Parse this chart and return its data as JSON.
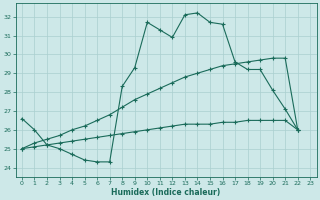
{
  "xlabel": "Humidex (Indice chaleur)",
  "bg_color": "#cde8e8",
  "grid_color": "#aacfcf",
  "line_color": "#1a6b5a",
  "xlim": [
    -0.5,
    23.5
  ],
  "ylim": [
    23.5,
    32.7
  ],
  "xticks": [
    0,
    1,
    2,
    3,
    4,
    5,
    6,
    7,
    8,
    9,
    10,
    11,
    12,
    13,
    14,
    15,
    16,
    17,
    18,
    19,
    20,
    21,
    22,
    23
  ],
  "yticks": [
    24,
    25,
    26,
    27,
    28,
    29,
    30,
    31,
    32
  ],
  "line1_x": [
    0,
    1,
    2,
    3,
    4,
    5,
    6,
    7,
    8,
    9,
    10,
    11,
    12,
    13,
    14,
    15,
    16,
    17,
    18,
    19,
    20,
    21,
    22
  ],
  "line1_y": [
    26.6,
    26.0,
    25.2,
    25.0,
    24.7,
    24.4,
    24.3,
    24.3,
    28.3,
    29.3,
    31.7,
    31.3,
    30.9,
    32.1,
    32.2,
    31.7,
    31.6,
    29.6,
    29.2,
    29.2,
    28.1,
    27.1,
    26.0
  ],
  "line2_x": [
    0,
    1,
    2,
    3,
    4,
    5,
    6,
    7,
    8,
    9,
    10,
    11,
    12,
    13,
    14,
    15,
    16,
    17,
    18,
    19,
    20,
    21,
    22
  ],
  "line2_y": [
    25.0,
    25.3,
    25.5,
    25.7,
    26.0,
    26.2,
    26.5,
    26.8,
    27.2,
    27.6,
    27.9,
    28.2,
    28.5,
    28.8,
    29.0,
    29.2,
    29.4,
    29.5,
    29.6,
    29.7,
    29.8,
    29.8,
    26.0
  ],
  "line3_x": [
    0,
    1,
    2,
    3,
    4,
    5,
    6,
    7,
    8,
    9,
    10,
    11,
    12,
    13,
    14,
    15,
    16,
    17,
    18,
    19,
    20,
    21,
    22
  ],
  "line3_y": [
    25.0,
    25.1,
    25.2,
    25.3,
    25.4,
    25.5,
    25.6,
    25.7,
    25.8,
    25.9,
    26.0,
    26.1,
    26.2,
    26.3,
    26.3,
    26.3,
    26.4,
    26.4,
    26.5,
    26.5,
    26.5,
    26.5,
    26.0
  ]
}
